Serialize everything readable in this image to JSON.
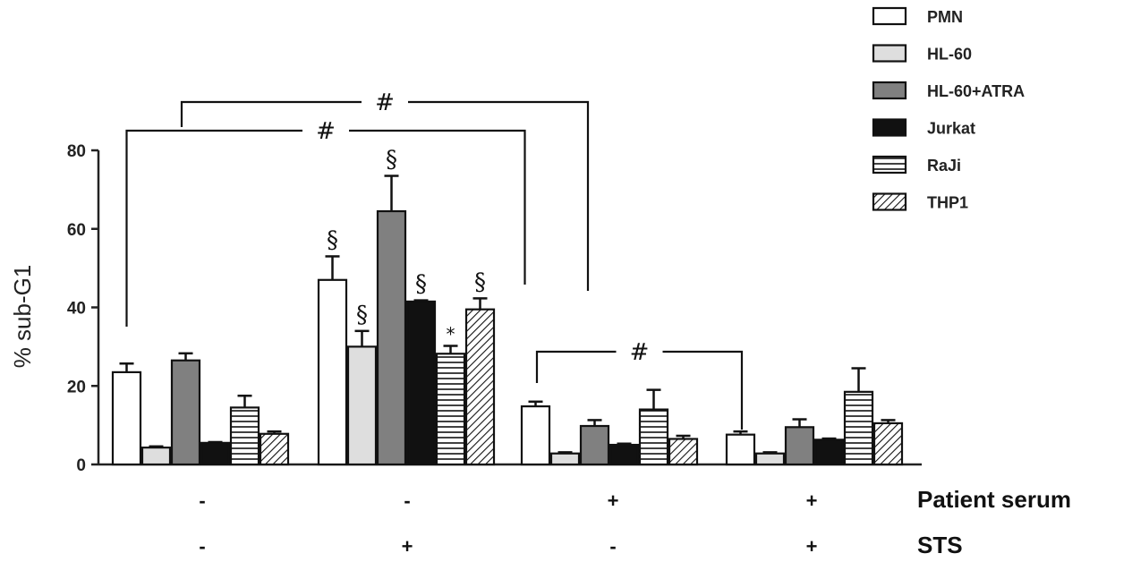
{
  "chart_data": {
    "type": "bar",
    "ylabel": "% sub-G1",
    "ylim": [
      0,
      80
    ],
    "yticks": [
      0,
      20,
      40,
      60,
      80
    ],
    "grid": false,
    "legend_position": "top-right",
    "series": [
      {
        "name": "PMN",
        "pattern": "white",
        "values": [
          23.5,
          47,
          14.8,
          7.6
        ],
        "errors": [
          2.2,
          6.0,
          1.2,
          0.8
        ]
      },
      {
        "name": "HL-60",
        "pattern": "lightgray",
        "values": [
          4.3,
          30,
          2.8,
          2.8
        ],
        "errors": [
          0.3,
          4.0,
          0.3,
          0.3
        ]
      },
      {
        "name": "HL-60+ATRA",
        "pattern": "darkgray",
        "values": [
          26.5,
          64.5,
          9.8,
          9.5
        ],
        "errors": [
          1.8,
          9.0,
          1.5,
          2.0
        ]
      },
      {
        "name": "Jurkat",
        "pattern": "black",
        "values": [
          5.5,
          41.5,
          5.0,
          6.3
        ],
        "errors": [
          0.2,
          0.3,
          0.3,
          0.3
        ]
      },
      {
        "name": "RaJi",
        "pattern": "horizontal",
        "values": [
          14.5,
          28.2,
          14.0,
          18.5
        ],
        "errors": [
          3.0,
          2.0,
          5.0,
          6.0
        ]
      },
      {
        "name": "THP1",
        "pattern": "diagonal",
        "values": [
          7.8,
          39.5,
          6.5,
          10.5
        ],
        "errors": [
          0.6,
          2.8,
          0.8,
          0.8
        ]
      }
    ],
    "condition_rows": [
      {
        "name": "Patient serum",
        "values": [
          "-",
          "-",
          "+",
          "+"
        ]
      },
      {
        "name": "STS",
        "values": [
          "-",
          "+",
          "-",
          "+"
        ]
      }
    ],
    "annotations": {
      "section_marks": [
        {
          "group": 1,
          "series": 0,
          "text": "§"
        },
        {
          "group": 1,
          "series": 1,
          "text": "§"
        },
        {
          "group": 1,
          "series": 2,
          "text": "§"
        },
        {
          "group": 1,
          "series": 3,
          "text": "§"
        },
        {
          "group": 1,
          "series": 4,
          "text": "*"
        },
        {
          "group": 1,
          "series": 5,
          "text": "§"
        }
      ],
      "brackets": [
        {
          "text": "#",
          "from_group": 0,
          "to_group": 1
        },
        {
          "text": "#",
          "from_group": 0,
          "to_group": 2
        },
        {
          "text": "#",
          "from_group": 2,
          "to_group": 3
        }
      ]
    }
  }
}
